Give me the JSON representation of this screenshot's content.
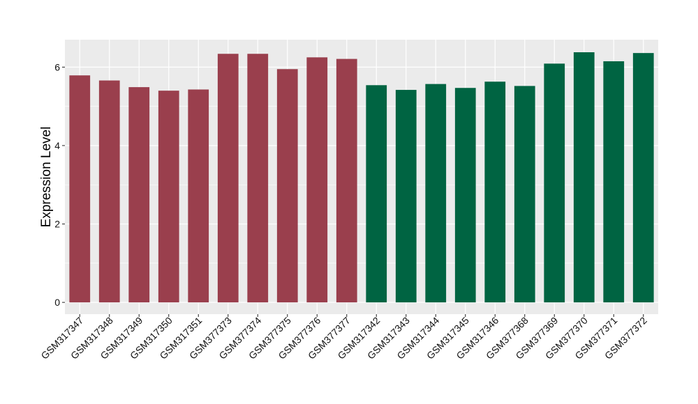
{
  "chart_data": {
    "type": "bar",
    "ylabel": "Expression Level",
    "xlabel": "",
    "ylim": [
      -0.3,
      6.7
    ],
    "yticks": [
      0,
      2,
      4,
      6
    ],
    "grid": true,
    "background_color": "#EBEBEB",
    "grid_color": "#FFFFFF",
    "categories": [
      "GSM317347",
      "GSM317348",
      "GSM317349",
      "GSM317350",
      "GSM317351",
      "GSM377373",
      "GSM377374",
      "GSM377375",
      "GSM377376",
      "GSM377377",
      "GSM317342",
      "GSM317343",
      "GSM317344",
      "GSM317345",
      "GSM317346",
      "GSM377368",
      "GSM377369",
      "GSM377370",
      "GSM377371",
      "GSM377372"
    ],
    "values": [
      5.79,
      5.66,
      5.49,
      5.4,
      5.43,
      6.34,
      6.34,
      5.95,
      6.25,
      6.21,
      5.54,
      5.42,
      5.57,
      5.47,
      5.63,
      5.52,
      6.09,
      6.38,
      6.15,
      6.36
    ],
    "bar_colors": [
      "#9A3F4D",
      "#9A3F4D",
      "#9A3F4D",
      "#9A3F4D",
      "#9A3F4D",
      "#9A3F4D",
      "#9A3F4D",
      "#9A3F4D",
      "#9A3F4D",
      "#9A3F4D",
      "#006442",
      "#006442",
      "#006442",
      "#006442",
      "#006442",
      "#006442",
      "#006442",
      "#006442",
      "#006442",
      "#006442"
    ]
  }
}
